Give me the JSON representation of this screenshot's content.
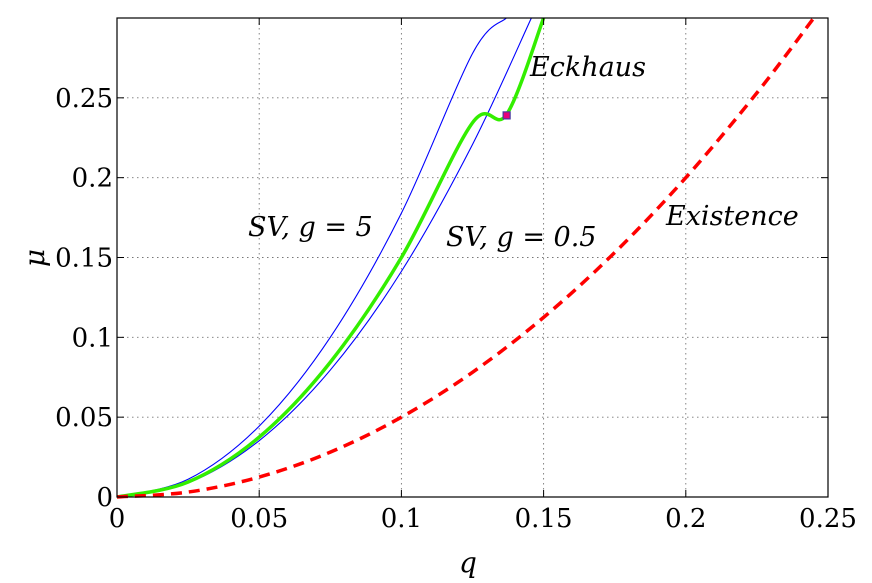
{
  "chart_data": {
    "type": "line",
    "xlabel": "q",
    "ylabel": "μ",
    "xlim": [
      0,
      0.25
    ],
    "ylim": [
      0,
      0.3
    ],
    "grid": true,
    "x_ticks": [
      0,
      0.05,
      0.1,
      0.15,
      0.2,
      0.25
    ],
    "x_tick_labels": [
      "0",
      "0.05",
      "0.1",
      "0.15",
      "0.2",
      "0.25"
    ],
    "y_ticks": [
      0,
      0.05,
      0.1,
      0.15,
      0.2,
      0.25
    ],
    "y_tick_labels": [
      "0",
      "0.05",
      "0.1",
      "0.15",
      "0.2",
      "0.25"
    ],
    "series": [
      {
        "name": "Existence",
        "color": "#ff0000",
        "style": "dashed",
        "points": [
          [
            0,
            0
          ],
          [
            0.025,
            0.0031
          ],
          [
            0.05,
            0.0125
          ],
          [
            0.075,
            0.0281
          ],
          [
            0.1,
            0.05
          ],
          [
            0.125,
            0.0781
          ],
          [
            0.15,
            0.1125
          ],
          [
            0.175,
            0.1531
          ],
          [
            0.2,
            0.2
          ],
          [
            0.225,
            0.2531
          ],
          [
            0.245,
            0.3
          ]
        ]
      },
      {
        "name": "Eckhaus",
        "color": "#33ee00",
        "style": "solid-thick",
        "points": [
          [
            0,
            0
          ],
          [
            0.025,
            0.0094
          ],
          [
            0.05,
            0.0375
          ],
          [
            0.075,
            0.0844
          ],
          [
            0.1,
            0.15
          ],
          [
            0.125,
            0.2344
          ],
          [
            0.137,
            0.2396
          ],
          [
            0.15,
            0.3
          ]
        ]
      },
      {
        "name": "SV, g = 5",
        "color": "#0000ff",
        "style": "solid-thin",
        "points": [
          [
            0,
            0
          ],
          [
            0.025,
            0.0111
          ],
          [
            0.05,
            0.0444
          ],
          [
            0.075,
            0.1
          ],
          [
            0.1,
            0.1778
          ],
          [
            0.125,
            0.2778
          ],
          [
            0.1369,
            0.3
          ]
        ]
      },
      {
        "name": "SV, g = 0.5",
        "color": "#0000ff",
        "style": "solid-thin",
        "points": [
          [
            0,
            0
          ],
          [
            0.025,
            0.0088
          ],
          [
            0.05,
            0.0353
          ],
          [
            0.075,
            0.0795
          ],
          [
            0.1,
            0.1413
          ],
          [
            0.125,
            0.2208
          ],
          [
            0.1457,
            0.3
          ]
        ]
      }
    ],
    "marker": {
      "x": 0.137,
      "y": 0.239,
      "fill": "#e8007a",
      "edge": "#4a3aa0"
    },
    "annotations": {
      "eckhaus": "Eckhaus",
      "existence": "Existence",
      "sv_g5_prefix": "SV, ",
      "sv_g5_eq": "g = 5",
      "sv_g05_prefix": "SV, ",
      "sv_g05_eq": "g = 0.5"
    }
  }
}
